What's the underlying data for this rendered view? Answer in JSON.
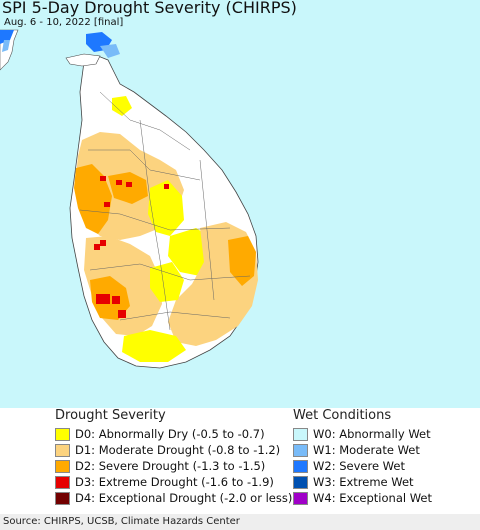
{
  "title": "SPI 5-Day Drought Severity (CHIRPS)",
  "subtitle": "Aug. 6 - 10, 2022 [final]",
  "colors": {
    "ocean": "#c9f7fb",
    "land": "#ffffff",
    "D0": "#ffff00",
    "D1": "#fcd37f",
    "D2": "#ffaa00",
    "D3": "#e60000",
    "D4": "#730000",
    "W0": "#c9f7fb",
    "W1": "#79bbf8",
    "W2": "#1e78ff",
    "W3": "#0050b0",
    "W4": "#a000c8"
  },
  "legend": {
    "drought_title": "Drought Severity",
    "drought_items": [
      {
        "code": "D0",
        "label": "D0: Abnormally Dry (-0.5 to -0.7)",
        "color": "#ffff00"
      },
      {
        "code": "D1",
        "label": "D1: Moderate Drought (-0.8 to -1.2)",
        "color": "#fcd37f"
      },
      {
        "code": "D2",
        "label": "D2: Severe Drought (-1.3 to -1.5)",
        "color": "#ffaa00"
      },
      {
        "code": "D3",
        "label": "D3: Extreme Drought (-1.6 to -1.9)",
        "color": "#e60000"
      },
      {
        "code": "D4",
        "label": "D4: Exceptional Drought (-2.0 or less)",
        "color": "#730000"
      }
    ],
    "wet_title": "Wet Conditions",
    "wet_items": [
      {
        "code": "W0",
        "label": "W0: Abnormally Wet",
        "color": "#c9f7fb"
      },
      {
        "code": "W1",
        "label": "W1: Moderate Wet",
        "color": "#79bbf8"
      },
      {
        "code": "W2",
        "label": "W2: Severe Wet",
        "color": "#1e78ff"
      },
      {
        "code": "W3",
        "label": "W3: Extreme Wet",
        "color": "#0050b0"
      },
      {
        "code": "W4",
        "label": "W4: Exceptional Wet",
        "color": "#a000c8"
      }
    ]
  },
  "source": "Source: CHIRPS, UCSB, Climate Hazards Center"
}
